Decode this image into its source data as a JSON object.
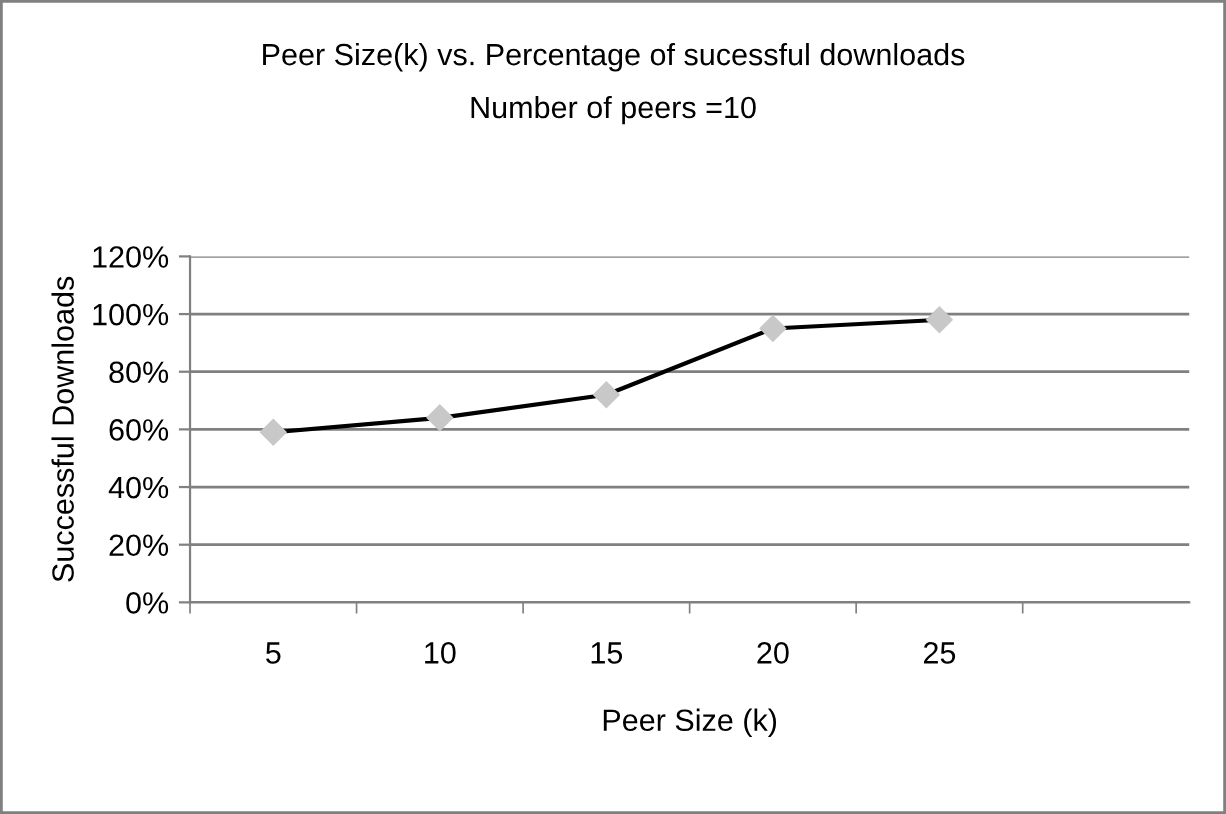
{
  "chart_data": {
    "type": "line",
    "title": "Peer Size(k) vs. Percentage of sucessful downloads",
    "subtitle": "Number of peers =10",
    "xlabel": "Peer Size (k)",
    "ylabel": "Successful Downloads",
    "categories": [
      "5",
      "10",
      "15",
      "20",
      "25",
      null
    ],
    "series": [
      {
        "color": "#000000",
        "values": [
          59,
          64,
          72,
          95,
          98,
          null
        ]
      }
    ],
    "marker": "diamond",
    "line_style": "solid",
    "grid": "y",
    "ylim": [
      0,
      120
    ],
    "yticks": [
      {
        "value": 0,
        "label": "0%"
      },
      {
        "value": 20,
        "label": "20%"
      },
      {
        "value": 40,
        "label": "40%"
      },
      {
        "value": 60,
        "label": "60%"
      },
      {
        "value": 80,
        "label": "80%"
      },
      {
        "value": 100,
        "label": "100%"
      },
      {
        "value": 120,
        "label": "120%"
      }
    ]
  }
}
